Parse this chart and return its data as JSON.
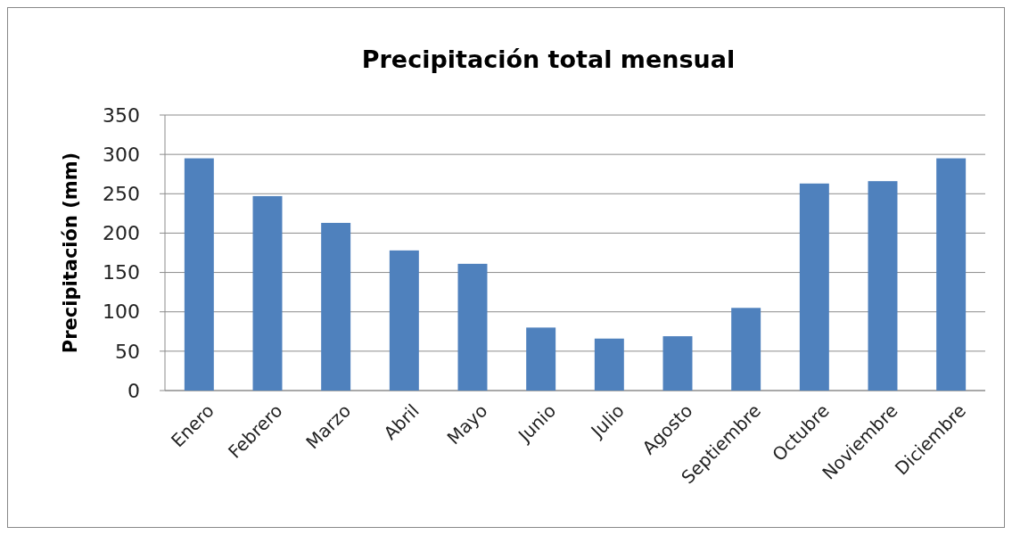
{
  "chart_data": {
    "type": "bar",
    "title": "Precipitación total mensual",
    "ylabel": "Precipitación (mm)",
    "categories": [
      "Enero",
      "Febrero",
      "Marzo",
      "Abril",
      "Mayo",
      "Junio",
      "Julio",
      "Agosto",
      "Septiembre",
      "Octubre",
      "Noviembre",
      "Diciembre"
    ],
    "values": [
      295,
      247,
      213,
      178,
      161,
      80,
      66,
      69,
      105,
      263,
      266,
      295
    ],
    "color": "#4f81bd",
    "ylim": [
      0,
      350
    ],
    "yticks": [
      0,
      50,
      100,
      150,
      200,
      250,
      300,
      350
    ],
    "grid": "y"
  }
}
